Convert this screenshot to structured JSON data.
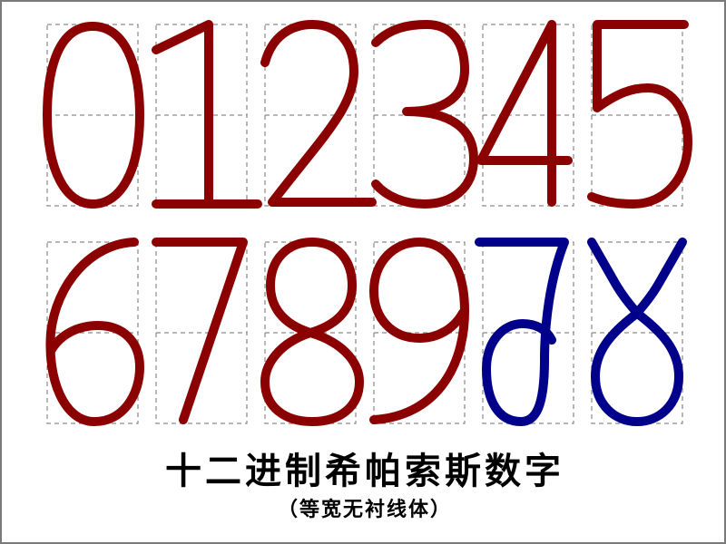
{
  "title": "十二进制希帕索斯数字",
  "subtitle": "（等宽无衬线体）",
  "colors": {
    "decimal_digits": "#8b0000",
    "dozenal_digits": "#00008b",
    "grid": "#8a8a8a",
    "frame": "#7a7a7a",
    "background": "#ffffff"
  },
  "glyphs": [
    {
      "symbol": "0",
      "value": 0,
      "set": "decimal"
    },
    {
      "symbol": "1",
      "value": 1,
      "set": "decimal"
    },
    {
      "symbol": "2",
      "value": 2,
      "set": "decimal"
    },
    {
      "symbol": "3",
      "value": 3,
      "set": "decimal"
    },
    {
      "symbol": "4",
      "value": 4,
      "set": "decimal"
    },
    {
      "symbol": "5",
      "value": 5,
      "set": "decimal"
    },
    {
      "symbol": "6",
      "value": 6,
      "set": "decimal"
    },
    {
      "symbol": "7",
      "value": 7,
      "set": "decimal"
    },
    {
      "symbol": "8",
      "value": 8,
      "set": "decimal"
    },
    {
      "symbol": "9",
      "value": 9,
      "set": "decimal"
    },
    {
      "symbol": "dek",
      "value": 10,
      "set": "dozenal"
    },
    {
      "symbol": "el",
      "value": 11,
      "set": "dozenal"
    }
  ]
}
